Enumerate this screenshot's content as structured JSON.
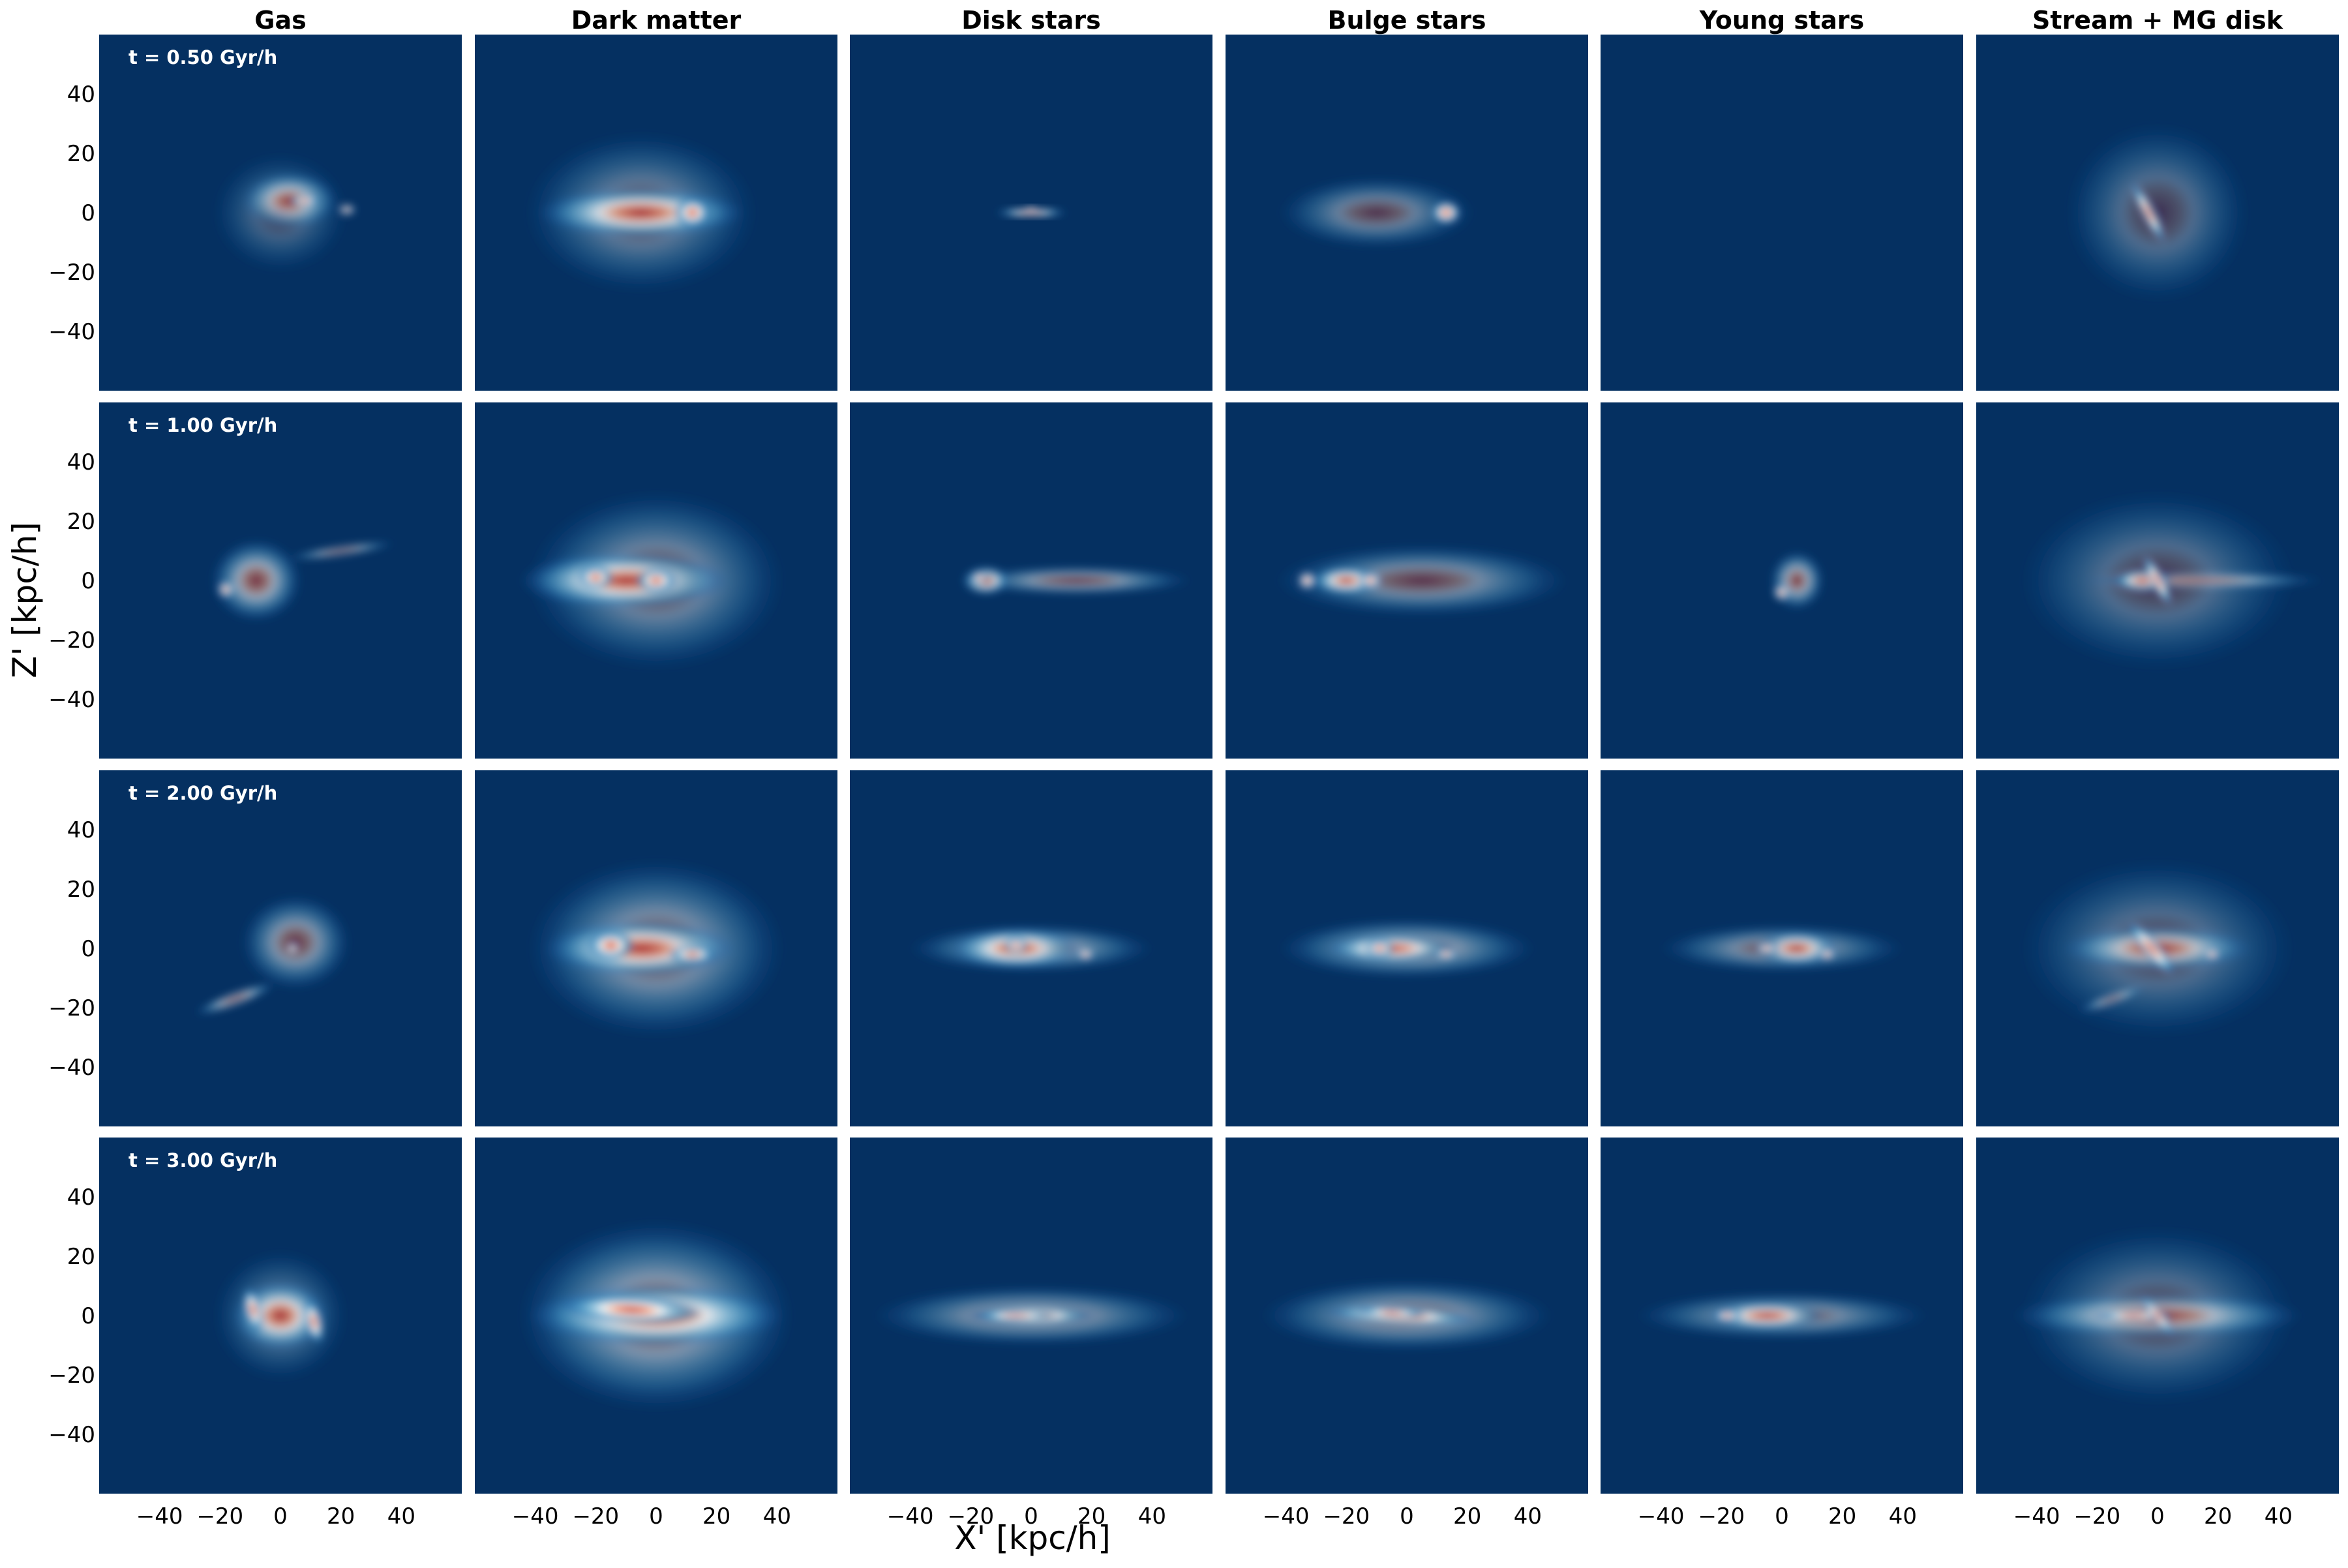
{
  "chart_data": {
    "type": "heatmap",
    "colormap": "RdBu_r",
    "background_color": "#053061",
    "columns": [
      "Gas",
      "Dark matter",
      "Disk stars",
      "Bulge stars",
      "Young stars",
      "Stream + MG disk"
    ],
    "rows": [
      {
        "time_label": "t = 0.50 Gyr/h"
      },
      {
        "time_label": "t = 1.00 Gyr/h"
      },
      {
        "time_label": "t = 2.00 Gyr/h"
      },
      {
        "time_label": "t = 3.00 Gyr/h"
      }
    ],
    "xlabel": "X' [kpc/h]",
    "ylabel": "Z' [kpc/h]",
    "xlim": [
      -60,
      60
    ],
    "ylim": [
      -60,
      60
    ],
    "xticks": [
      -40,
      -20,
      0,
      20,
      40
    ],
    "yticks": [
      40,
      20,
      0,
      -20,
      -40
    ],
    "grid": false,
    "panels": [
      [
        [
          {
            "x": 0,
            "y": 0,
            "sx": 22,
            "sy": 20,
            "a": 0,
            "w": 0.25
          },
          {
            "x": 3,
            "y": 4,
            "sx": 16,
            "sy": 10,
            "a": 0,
            "w": 0.6
          },
          {
            "x": 8,
            "y": 4,
            "sx": 5,
            "sy": 2,
            "a": 0,
            "w": 1.0
          },
          {
            "x": 22,
            "y": 1,
            "sx": 3,
            "sy": 2,
            "a": 0,
            "w": 0.8
          }
        ],
        [
          {
            "x": -5,
            "y": 0,
            "sx": 38,
            "sy": 27,
            "a": 0,
            "w": 0.35
          },
          {
            "x": -5,
            "y": 0,
            "sx": 34,
            "sy": 9,
            "a": 0,
            "w": 0.8
          },
          {
            "x": 12,
            "y": 0,
            "sx": 6,
            "sy": 5,
            "a": 0,
            "w": 1.0
          }
        ],
        [
          {
            "x": 0,
            "y": 0,
            "sx": 12,
            "sy": 1.5,
            "a": 0,
            "w": 0.9
          },
          {
            "x": 0,
            "y": 1,
            "sx": 3,
            "sy": 1,
            "a": 0,
            "w": 1.0
          }
        ],
        [
          {
            "x": -10,
            "y": 0,
            "sx": 32,
            "sy": 12,
            "a": 0,
            "w": 0.4
          },
          {
            "x": 13,
            "y": 0,
            "sx": 5,
            "sy": 4,
            "a": 0,
            "w": 1.0
          }
        ],
        [],
        [
          {
            "x": 0,
            "y": 0,
            "sx": 30,
            "sy": 30,
            "a": 0,
            "w": 0.3
          },
          {
            "x": -3,
            "y": 0,
            "sx": 12,
            "sy": 2.2,
            "a": -62,
            "w": 1.0
          }
        ]
      ],
      [
        [
          {
            "x": -8,
            "y": 0,
            "sx": 15,
            "sy": 14,
            "a": 0,
            "w": 0.6
          },
          {
            "x": 20,
            "y": 10,
            "sx": 18,
            "sy": 2,
            "a": 8,
            "w": 0.5
          },
          {
            "x": -18,
            "y": -3,
            "sx": 3,
            "sy": 3,
            "a": 0,
            "w": 0.9
          }
        ],
        [
          {
            "x": 0,
            "y": 0,
            "sx": 42,
            "sy": 30,
            "a": 0,
            "w": 0.4
          },
          {
            "x": -10,
            "y": 0,
            "sx": 35,
            "sy": 10,
            "a": 0,
            "w": 0.8
          },
          {
            "x": -20,
            "y": 1,
            "sx": 6,
            "sy": 4,
            "a": 0,
            "w": 1.0
          },
          {
            "x": 0,
            "y": 0,
            "sx": 7,
            "sy": 4,
            "a": 0,
            "w": 1.0
          }
        ],
        [
          {
            "x": 15,
            "y": 0,
            "sx": 38,
            "sy": 5,
            "a": 0,
            "w": 0.5
          },
          {
            "x": -15,
            "y": 0,
            "sx": 8,
            "sy": 5,
            "a": 0,
            "w": 0.8
          },
          {
            "x": -17,
            "y": 1,
            "sx": 3,
            "sy": 2,
            "a": 0,
            "w": 1.0
          }
        ],
        [
          {
            "x": 5,
            "y": 0,
            "sx": 48,
            "sy": 12,
            "a": 0,
            "w": 0.45
          },
          {
            "x": -20,
            "y": 0,
            "sx": 12,
            "sy": 5,
            "a": 0,
            "w": 0.85
          },
          {
            "x": -33,
            "y": 0,
            "sx": 3,
            "sy": 3,
            "a": 0,
            "w": 1.0
          },
          {
            "x": -12,
            "y": 0,
            "sx": 4,
            "sy": 3,
            "a": 0,
            "w": 1.0
          }
        ],
        [
          {
            "x": 5,
            "y": 0,
            "sx": 9,
            "sy": 10,
            "a": 0,
            "w": 0.6
          },
          {
            "x": 0,
            "y": -4,
            "sx": 3,
            "sy": 3,
            "a": 0,
            "w": 0.9
          }
        ],
        [
          {
            "x": 0,
            "y": 0,
            "sx": 45,
            "sy": 30,
            "a": 0,
            "w": 0.3
          },
          {
            "x": 15,
            "y": 0,
            "sx": 40,
            "sy": 3,
            "a": 0,
            "w": 0.5
          },
          {
            "x": -5,
            "y": 0,
            "sx": 10,
            "sy": 4,
            "a": 0,
            "w": 0.8
          },
          {
            "x": 0,
            "y": 0,
            "sx": 10,
            "sy": 2.2,
            "a": -62,
            "w": 1.0
          }
        ]
      ],
      [
        [
          {
            "x": 5,
            "y": 2,
            "sx": 18,
            "sy": 16,
            "a": 0,
            "w": 0.5
          },
          {
            "x": -15,
            "y": -17,
            "sx": 14,
            "sy": 2.5,
            "a": 20,
            "w": 0.6
          },
          {
            "x": 4,
            "y": 0,
            "sx": 2,
            "sy": 2,
            "a": 0,
            "w": 1.0
          }
        ],
        [
          {
            "x": 0,
            "y": 0,
            "sx": 42,
            "sy": 30,
            "a": 0,
            "w": 0.45
          },
          {
            "x": -5,
            "y": 0,
            "sx": 32,
            "sy": 10,
            "a": 0,
            "w": 0.8
          },
          {
            "x": -15,
            "y": 1,
            "sx": 8,
            "sy": 5,
            "a": 0,
            "w": 1.0
          },
          {
            "x": 12,
            "y": -2,
            "sx": 8,
            "sy": 3,
            "a": 0,
            "w": 0.9
          }
        ],
        [
          {
            "x": 0,
            "y": 0,
            "sx": 40,
            "sy": 8,
            "a": 0,
            "w": 0.5
          },
          {
            "x": -5,
            "y": 0,
            "sx": 22,
            "sy": 7,
            "a": 0,
            "w": 0.8
          },
          {
            "x": -5,
            "y": 1,
            "sx": 4,
            "sy": 3,
            "a": 0,
            "w": 1.0
          },
          {
            "x": 18,
            "y": -2,
            "sx": 3,
            "sy": 2,
            "a": 0,
            "w": 1.0
          }
        ],
        [
          {
            "x": 0,
            "y": 0,
            "sx": 42,
            "sy": 10,
            "a": 0,
            "w": 0.5
          },
          {
            "x": -5,
            "y": 0,
            "sx": 22,
            "sy": 5,
            "a": 0,
            "w": 0.85
          },
          {
            "x": -9,
            "y": 0,
            "sx": 5,
            "sy": 3,
            "a": 0,
            "w": 1.0
          },
          {
            "x": 13,
            "y": -2,
            "sx": 4,
            "sy": 2,
            "a": 0,
            "w": 0.95
          }
        ],
        [
          {
            "x": 0,
            "y": 0,
            "sx": 40,
            "sy": 8,
            "a": 0,
            "w": 0.45
          },
          {
            "x": 5,
            "y": 0,
            "sx": 14,
            "sy": 6,
            "a": 0,
            "w": 0.75
          },
          {
            "x": -5,
            "y": 0,
            "sx": 4,
            "sy": 2,
            "a": 0,
            "w": 1.0
          },
          {
            "x": 15,
            "y": -2,
            "sx": 3,
            "sy": 2,
            "a": 0,
            "w": 1.0
          }
        ],
        [
          {
            "x": 0,
            "y": 0,
            "sx": 45,
            "sy": 30,
            "a": 0,
            "w": 0.3
          },
          {
            "x": 0,
            "y": 0,
            "sx": 32,
            "sy": 8,
            "a": 0,
            "w": 0.65
          },
          {
            "x": -2,
            "y": 0,
            "sx": 12,
            "sy": 3,
            "a": -50,
            "w": 1.0
          },
          {
            "x": -15,
            "y": -17,
            "sx": 12,
            "sy": 2,
            "a": 20,
            "w": 0.5
          },
          {
            "x": 18,
            "y": -2,
            "sx": 3,
            "sy": 2,
            "a": 0,
            "w": 0.95
          }
        ]
      ],
      [
        [
          {
            "x": 0,
            "y": 0,
            "sx": 22,
            "sy": 22,
            "a": 0,
            "w": 0.3
          },
          {
            "x": 0,
            "y": 0,
            "sx": 16,
            "sy": 12,
            "a": 0,
            "w": 0.8
          },
          {
            "x": -9,
            "y": 2,
            "sx": 3,
            "sy": 8,
            "a": 15,
            "w": 1.0
          },
          {
            "x": 11,
            "y": -2,
            "sx": 3,
            "sy": 8,
            "a": 15,
            "w": 1.0
          }
        ],
        [
          {
            "x": 0,
            "y": 0,
            "sx": 45,
            "sy": 32,
            "a": 0,
            "w": 0.5
          },
          {
            "x": 0,
            "y": 0,
            "sx": 42,
            "sy": 11,
            "a": 0,
            "w": 0.85
          },
          {
            "x": -8,
            "y": 2,
            "sx": 24,
            "sy": 5,
            "a": -3,
            "w": 1.0
          }
        ],
        [
          {
            "x": 0,
            "y": 0,
            "sx": 52,
            "sy": 10,
            "a": 0,
            "w": 0.45
          },
          {
            "x": 0,
            "y": 0,
            "sx": 22,
            "sy": 4,
            "a": 0,
            "w": 0.85
          },
          {
            "x": -5,
            "y": 0,
            "sx": 14,
            "sy": 1.8,
            "a": 0,
            "w": 1.0
          }
        ],
        [
          {
            "x": 0,
            "y": 0,
            "sx": 48,
            "sy": 12,
            "a": 0,
            "w": 0.45
          },
          {
            "x": -2,
            "y": 0,
            "sx": 26,
            "sy": 4,
            "a": -3,
            "w": 0.85
          },
          {
            "x": -5,
            "y": 1,
            "sx": 12,
            "sy": 2,
            "a": -3,
            "w": 1.0
          }
        ],
        [
          {
            "x": 0,
            "y": 0,
            "sx": 48,
            "sy": 8,
            "a": 0,
            "w": 0.45
          },
          {
            "x": -5,
            "y": 0,
            "sx": 20,
            "sy": 5,
            "a": 0,
            "w": 0.8
          },
          {
            "x": -18,
            "y": 0,
            "sx": 5,
            "sy": 2,
            "a": 0,
            "w": 1.0
          }
        ],
        [
          {
            "x": 0,
            "y": 0,
            "sx": 45,
            "sy": 30,
            "a": 0,
            "w": 0.3
          },
          {
            "x": 0,
            "y": 0,
            "sx": 48,
            "sy": 8,
            "a": 0,
            "w": 0.55
          },
          {
            "x": -8,
            "y": 0,
            "sx": 14,
            "sy": 2,
            "a": 0,
            "w": 1.0
          },
          {
            "x": 0,
            "y": 0,
            "sx": 9,
            "sy": 2,
            "a": -50,
            "w": 1.0
          }
        ]
      ]
    ]
  }
}
